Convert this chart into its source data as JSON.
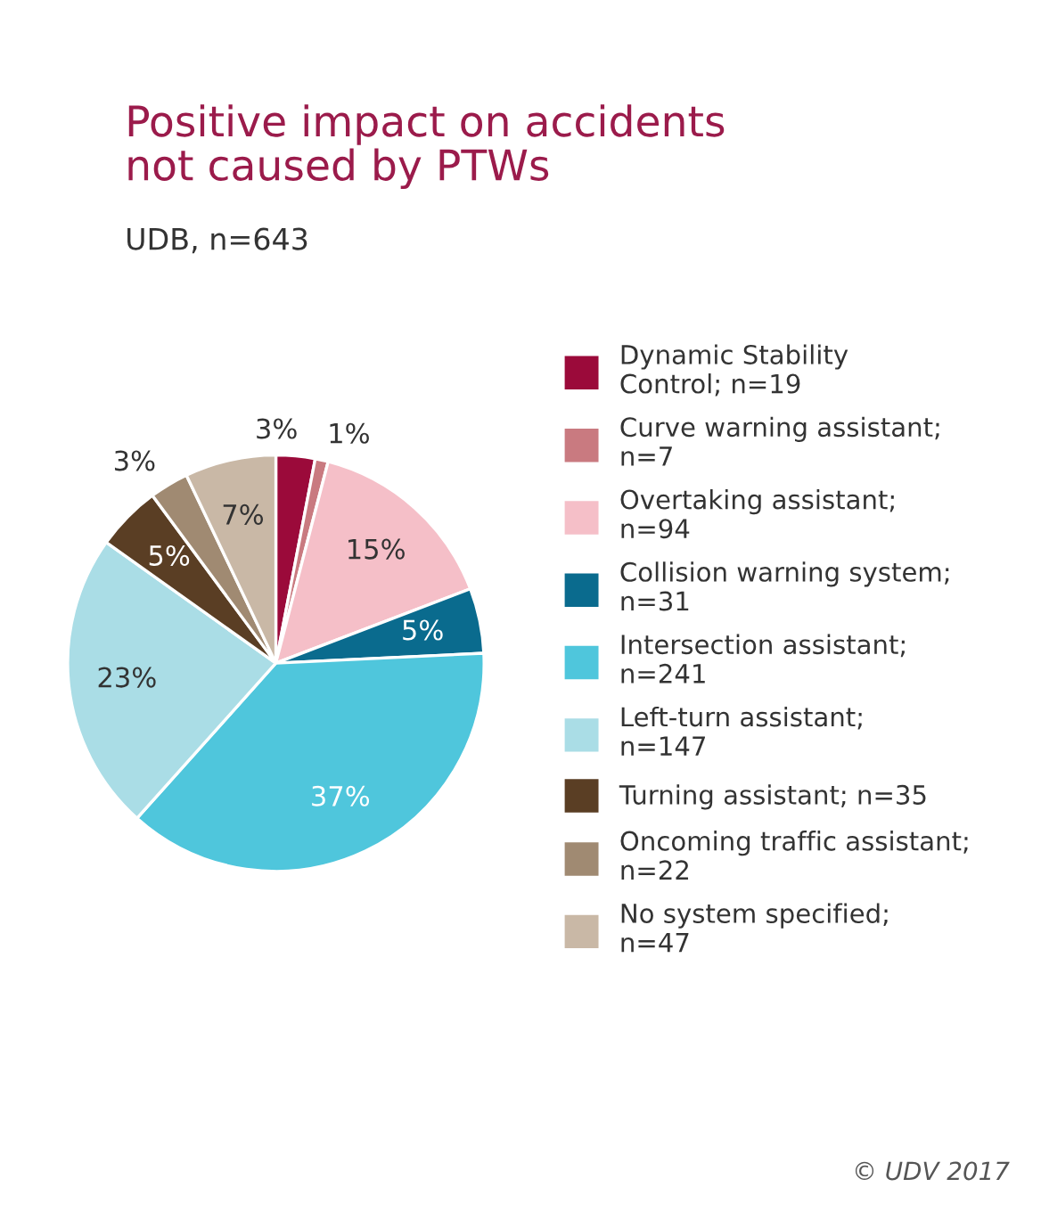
{
  "chart_data": {
    "type": "pie",
    "title": "Positive impact on accidents\nnot caused by PTWs",
    "subtitle": "UDB, n=643",
    "categories": [
      "Dynamic Stability\nControl; n=19",
      "Curve warning assistant;\nn=7",
      "Overtaking assistant;\nn=94",
      "Collision warning system;\nn=31",
      "Intersection assistant;\nn=241",
      "Left-turn assistant;\nn=147",
      "Turning assistant; n=35",
      "Oncoming traffic assistant;\nn=22",
      "No system specified;\nn=47"
    ],
    "values": [
      3,
      1,
      15,
      5,
      37,
      23,
      5,
      3,
      7
    ],
    "value_labels": [
      "3%",
      "1%",
      "15%",
      "5%",
      "37%",
      "23%",
      "5%",
      "3%",
      "7%"
    ],
    "colors": [
      "#9b0a3a",
      "#c97a80",
      "#f5bfc8",
      "#0a6b8e",
      "#4fc6dc",
      "#aadde6",
      "#5a3e24",
      "#a08a72",
      "#c9b8a6"
    ],
    "legend": "right",
    "annotations": [
      "© UDV 2017"
    ]
  }
}
